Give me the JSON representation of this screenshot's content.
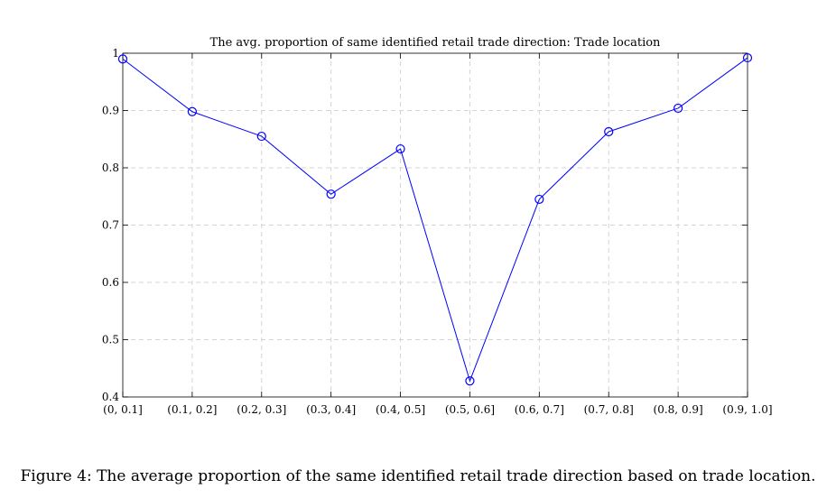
{
  "chart_data": {
    "type": "line",
    "title": "The avg. proportion of same identified retail trade direction: Trade location",
    "xlabel": "",
    "ylabel": "",
    "categories": [
      "(0, 0.1]",
      "(0.1, 0.2]",
      "(0.2, 0.3]",
      "(0.3, 0.4]",
      "(0.4, 0.5]",
      "(0.5, 0.6]",
      "(0.6, 0.7]",
      "(0.7, 0.8]",
      "(0.8, 0.9]",
      "(0.9, 1.0]"
    ],
    "series": [
      {
        "values": [
          0.99,
          0.898,
          0.855,
          0.754,
          0.833,
          0.428,
          0.745,
          0.863,
          0.904,
          0.992
        ],
        "color": "#0000ff",
        "marker": "circle"
      }
    ],
    "ylim": [
      0.4,
      1.0
    ],
    "yticks": [
      0.4,
      0.5,
      0.6,
      0.7,
      0.8,
      0.9,
      1.0
    ],
    "ytick_labels": [
      "0.4",
      "0.5",
      "0.6",
      "0.7",
      "0.8",
      "0.9",
      "1"
    ],
    "grid": true,
    "legend": "none"
  },
  "caption": "Figure 4: The average proportion of the same identified retail trade direction based on trade location."
}
